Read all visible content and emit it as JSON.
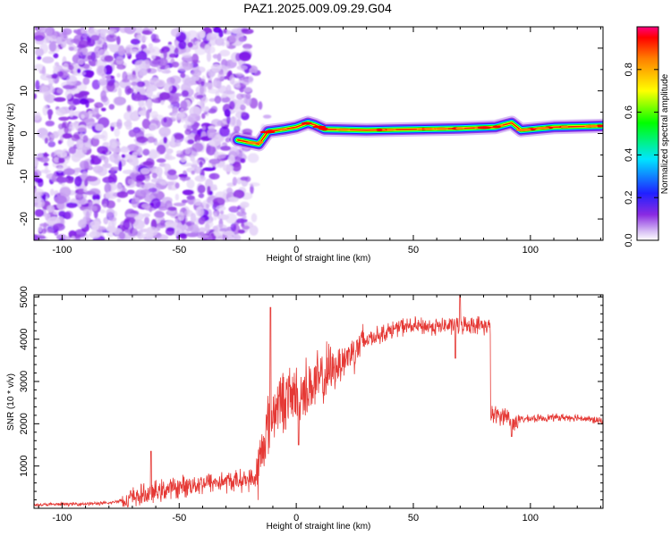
{
  "title": "PAZ1.2025.009.09.29.G04",
  "colors": {
    "snr_line": "#e53935",
    "axes": "#000000",
    "noise": "#8a2be2"
  },
  "chart_data": [
    {
      "type": "heatmap",
      "xlabel": "Height of straight line (km)",
      "ylabel": "Frequency (Hz)",
      "xlim": [
        -112,
        131
      ],
      "ylim": [
        -25,
        25
      ],
      "x_ticks": [
        -100,
        -50,
        0,
        50,
        100
      ],
      "y_ticks": [
        -20,
        -10,
        0,
        10,
        20
      ],
      "colorbar": {
        "label": "Normalized spectral amplitude",
        "range": [
          0,
          1
        ],
        "ticks": [
          "0.0",
          "0.2",
          "0.4",
          "0.6",
          "0.8"
        ],
        "colormap": "gist_rainbow"
      },
      "noise_region": {
        "x_range": [
          -112,
          -20
        ],
        "freq_range": [
          -25,
          25
        ],
        "amplitude": 0.15
      },
      "signal_track": [
        {
          "x": -25,
          "freq": -1.5
        },
        {
          "x": -16,
          "freq": -2.5
        },
        {
          "x": -12,
          "freq": 0.5
        },
        {
          "x": -5,
          "freq": 1.0
        },
        {
          "x": 0,
          "freq": 1.5
        },
        {
          "x": 5,
          "freq": 2.5
        },
        {
          "x": 8,
          "freq": 2.0
        },
        {
          "x": 12,
          "freq": 1.0
        },
        {
          "x": 30,
          "freq": 0.8
        },
        {
          "x": 50,
          "freq": 1.0
        },
        {
          "x": 70,
          "freq": 1.2
        },
        {
          "x": 85,
          "freq": 1.5
        },
        {
          "x": 92,
          "freq": 2.5
        },
        {
          "x": 96,
          "freq": 0.8
        },
        {
          "x": 110,
          "freq": 1.5
        },
        {
          "x": 131,
          "freq": 1.8
        }
      ]
    },
    {
      "type": "line",
      "xlabel": "Height of straight line (km)",
      "ylabel": "SNR (10 * v/v)",
      "xlim": [
        -112,
        131
      ],
      "ylim": [
        0,
        5050
      ],
      "x_ticks": [
        -100,
        -50,
        0,
        50,
        100
      ],
      "y_ticks": [
        1000,
        2000,
        3000,
        4000,
        5000
      ],
      "envelope": [
        {
          "x": -112,
          "y": 80
        },
        {
          "x": -80,
          "y": 120
        },
        {
          "x": -70,
          "y": 250
        },
        {
          "x": -55,
          "y": 450
        },
        {
          "x": -40,
          "y": 600
        },
        {
          "x": -25,
          "y": 650
        },
        {
          "x": -17,
          "y": 700
        },
        {
          "x": -13,
          "y": 1800
        },
        {
          "x": -8,
          "y": 2500
        },
        {
          "x": 0,
          "y": 2700
        },
        {
          "x": 10,
          "y": 3000
        },
        {
          "x": 20,
          "y": 3500
        },
        {
          "x": 30,
          "y": 4000
        },
        {
          "x": 45,
          "y": 4300
        },
        {
          "x": 60,
          "y": 4300
        },
        {
          "x": 75,
          "y": 4350
        },
        {
          "x": 83,
          "y": 4300
        },
        {
          "x": 84,
          "y": 2200
        },
        {
          "x": 90,
          "y": 2200
        },
        {
          "x": 92,
          "y": 2000
        },
        {
          "x": 95,
          "y": 2100
        },
        {
          "x": 110,
          "y": 2150
        },
        {
          "x": 120,
          "y": 2150
        },
        {
          "x": 131,
          "y": 2050
        }
      ],
      "peaks": [
        {
          "x": -11,
          "y": 4750
        },
        {
          "x": 70,
          "y": 5050
        },
        {
          "x": 68,
          "y": 3550
        },
        {
          "x": 1,
          "y": 1500
        },
        {
          "x": 92,
          "y": 1700
        },
        {
          "x": -62,
          "y": 1350
        }
      ]
    }
  ]
}
